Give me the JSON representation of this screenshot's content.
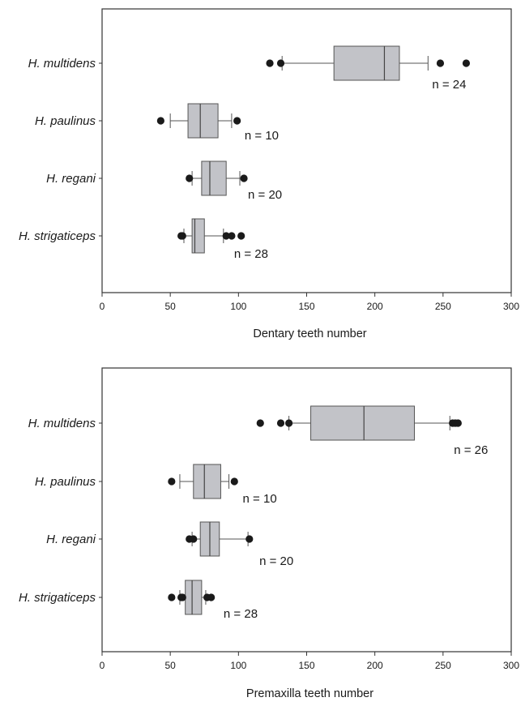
{
  "chart_data": [
    {
      "type": "boxplot",
      "orientation": "horizontal",
      "xlabel": "Dentary teeth number",
      "xlim": [
        0,
        300
      ],
      "xticks": [
        "0",
        "50",
        "100",
        "150",
        "200",
        "250",
        "300"
      ],
      "colors": {
        "box": "#c2c3c8",
        "outline": "#555555",
        "outlier": "#1a1a1a"
      },
      "series": [
        {
          "name": "H. multidens",
          "n_label": "n = 24",
          "q1": 170,
          "median": 207,
          "q3": 218,
          "whisker_low": 132,
          "whisker_high": 239,
          "outliers": [
            123,
            131,
            248,
            267
          ]
        },
        {
          "name": "H. paulinus",
          "n_label": "n = 10",
          "q1": 63,
          "median": 72,
          "q3": 85,
          "whisker_low": 50,
          "whisker_high": 95,
          "outliers": [
            43,
            99
          ]
        },
        {
          "name": "H. regani",
          "n_label": "n = 20",
          "q1": 73,
          "median": 79,
          "q3": 91,
          "whisker_low": 66,
          "whisker_high": 101,
          "outliers": [
            64,
            104
          ]
        },
        {
          "name": "H. strigaticeps",
          "n_label": "n = 28",
          "q1": 66,
          "median": 68,
          "q3": 75,
          "whisker_low": 60,
          "whisker_high": 89,
          "outliers": [
            58,
            59,
            91,
            95,
            102
          ]
        }
      ]
    },
    {
      "type": "boxplot",
      "orientation": "horizontal",
      "xlabel": "Premaxilla teeth number",
      "xlim": [
        0,
        300
      ],
      "xticks": [
        "0",
        "50",
        "100",
        "150",
        "200",
        "250",
        "300"
      ],
      "colors": {
        "box": "#c2c3c8",
        "outline": "#555555",
        "outlier": "#1a1a1a"
      },
      "series": [
        {
          "name": "H. multidens",
          "n_label": "n = 26",
          "q1": 153,
          "median": 192,
          "q3": 229,
          "whisker_low": 137,
          "whisker_high": 255,
          "outliers": [
            116,
            131,
            137,
            257,
            259,
            261
          ]
        },
        {
          "name": "H. paulinus",
          "n_label": "n = 10",
          "q1": 67,
          "median": 75,
          "q3": 87,
          "whisker_low": 57,
          "whisker_high": 93,
          "outliers": [
            51,
            97
          ]
        },
        {
          "name": "H. regani",
          "n_label": "n = 20",
          "q1": 72,
          "median": 79,
          "q3": 86,
          "whisker_low": 66,
          "whisker_high": 107,
          "outliers": [
            64,
            67,
            108
          ]
        },
        {
          "name": "H. strigaticeps",
          "n_label": "n = 28",
          "q1": 61,
          "median": 66,
          "q3": 73,
          "whisker_low": 57,
          "whisker_high": 76,
          "outliers": [
            51,
            58,
            59,
            77,
            80
          ]
        }
      ]
    }
  ]
}
